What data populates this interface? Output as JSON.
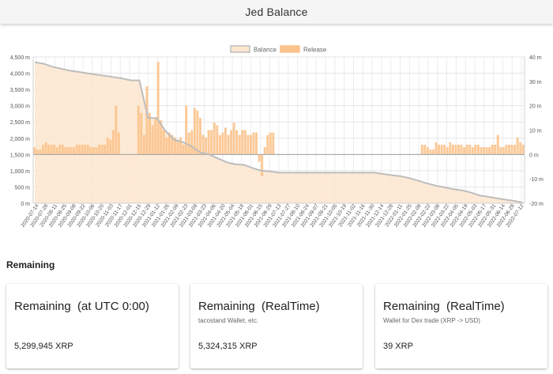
{
  "page": {
    "title": "Jed Balance"
  },
  "chart_data": {
    "type": "bar+area",
    "legend": [
      "Balance",
      "Release"
    ],
    "legend_position": "top",
    "colors": {
      "balance_fill": "#fde6cf",
      "balance_line": "#bdbdbd",
      "release": "#fcc38c"
    },
    "yleft": {
      "min": 0,
      "max": 4500,
      "ticks": [
        "0 m",
        "500 m",
        "1,000 m",
        "1,500 m",
        "2,000 m",
        "2,500 m",
        "3,000 m",
        "3,500 m",
        "4,000 m",
        "4,500 m"
      ]
    },
    "yright": {
      "min": -20,
      "max": 40,
      "ticks": [
        "-20 m",
        "-10 m",
        "0 m",
        "10 m",
        "20 m",
        "30 m",
        "40 m"
      ]
    },
    "grid": true,
    "x_tick_labels": [
      "2020-07-14",
      "2020-07-28",
      "2020-08-11",
      "2020-08-25",
      "2020-09-08",
      "2020-09-22",
      "2020-10-06",
      "2020-10-20",
      "2020-11-03",
      "2020-11-17",
      "2020-12-01",
      "2020-12-15",
      "2020-12-29",
      "2021-01-12",
      "2021-01-26",
      "2021-02-09",
      "2021-02-23",
      "2021-03-09",
      "2021-03-23",
      "2021-04-06",
      "2021-04-20",
      "2021-05-04",
      "2021-05-18",
      "2021-06-01",
      "2021-06-15",
      "2021-06-29",
      "2021-07-13",
      "2021-07-27",
      "2021-08-10",
      "2021-08-24",
      "2021-09-07",
      "2021-09-21",
      "2021-10-05",
      "2021-10-19",
      "2021-11-02",
      "2021-11-16",
      "2021-11-30",
      "2021-12-14",
      "2021-12-28",
      "2022-01-11",
      "2022-01-25",
      "2022-02-08",
      "2022-02-22",
      "2022-03-08",
      "2022-03-22",
      "2022-04-05",
      "2022-04-19",
      "2022-05-03",
      "2022-05-17",
      "2022-05-31",
      "2022-06-14",
      "2022-06-28",
      "2022-07-12"
    ],
    "balance_m": [
      4340,
      4290,
      4200,
      4140,
      4080,
      4040,
      4000,
      3960,
      3920,
      3880,
      3840,
      3780,
      3780,
      2620,
      2620,
      2220,
      1950,
      1880,
      1750,
      1560,
      1500,
      1380,
      1260,
      1200,
      1180,
      1080,
      1000,
      980,
      940,
      940,
      940,
      940,
      940,
      940,
      940,
      940,
      940,
      940,
      940,
      940,
      900,
      860,
      830,
      770,
      690,
      610,
      540,
      490,
      430,
      400,
      330,
      240,
      200,
      150,
      110,
      70,
      20
    ],
    "release_m": [
      3,
      2,
      2,
      4,
      5,
      4,
      4,
      4,
      3,
      4,
      4,
      3,
      3,
      3,
      3,
      4,
      4,
      4,
      4,
      4,
      3,
      3,
      3,
      4,
      4,
      4,
      7,
      6,
      10,
      20,
      9,
      0,
      0,
      0,
      0,
      0,
      0,
      20,
      17,
      8,
      28,
      17,
      12,
      15,
      38,
      14,
      10,
      7,
      9,
      8,
      7,
      6,
      7,
      4,
      20,
      9,
      10,
      19,
      18,
      15,
      8,
      7,
      10,
      10,
      13,
      12,
      8,
      9,
      11,
      8,
      10,
      13,
      10,
      8,
      10,
      10,
      8,
      8,
      9,
      9,
      -3,
      -9,
      3,
      8,
      9,
      9,
      0,
      0,
      0,
      0,
      0,
      0,
      0,
      0,
      0,
      0,
      0,
      0,
      0,
      0,
      0,
      0,
      0,
      0,
      0,
      0,
      0,
      0,
      0,
      0,
      0,
      0,
      0,
      0,
      0,
      0,
      0,
      0,
      0,
      0,
      0,
      0,
      0,
      0,
      0,
      0,
      0,
      0,
      0,
      0,
      0,
      0,
      0,
      0,
      0,
      0,
      0,
      0,
      4,
      4,
      3,
      2,
      2,
      5,
      4,
      4,
      4,
      3,
      5,
      4,
      4,
      4,
      4,
      3,
      4,
      4,
      3,
      4,
      4,
      3,
      3,
      3,
      3,
      4,
      4,
      8,
      3,
      3,
      4,
      4,
      4,
      4,
      7,
      5,
      4
    ]
  },
  "remaining": {
    "heading": "Remaining",
    "cards": [
      {
        "title": "Remaining  (at UTC 0:00)",
        "subtitle": "",
        "value": "5,299,945 XRP"
      },
      {
        "title": "Remaining  (RealTime)",
        "subtitle": "tacostand Wallet, etc.",
        "value": "5,324,315 XRP"
      },
      {
        "title": "Remaining  (RealTime)",
        "subtitle": "Wallet for Dex trade (XRP -> USD)",
        "value": "39 XRP"
      }
    ]
  }
}
